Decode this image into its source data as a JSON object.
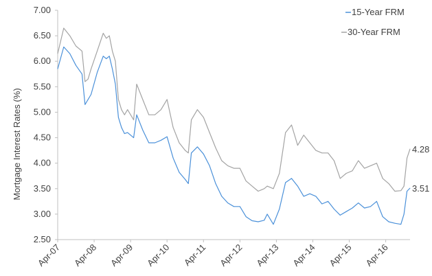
{
  "chart_data": {
    "type": "line",
    "ylabel": "Mortgage Interest Rates (%)",
    "xlabel": "",
    "ylim": [
      2.5,
      7.0
    ],
    "yticks": [
      "2.50",
      "3.00",
      "3.50",
      "4.00",
      "4.50",
      "5.00",
      "5.50",
      "6.00",
      "6.50",
      "7.00"
    ],
    "xlim": [
      "2007-04",
      "2016-12"
    ],
    "xticks": [
      "Apr-07",
      "Apr-08",
      "Apr-09",
      "Apr-10",
      "Apr-11",
      "Apr-12",
      "Apr-13",
      "Apr-14",
      "Apr-15",
      "Apr-16"
    ],
    "grid": false,
    "legend_position": "top-right",
    "series": [
      {
        "name": "15-Year FRM",
        "color": "#4a90d9",
        "end_label": "3.51",
        "points": [
          [
            "2007-04",
            5.85
          ],
          [
            "2007-06",
            6.28
          ],
          [
            "2007-08",
            6.15
          ],
          [
            "2007-10",
            5.92
          ],
          [
            "2007-12",
            5.75
          ],
          [
            "2008-01",
            5.15
          ],
          [
            "2008-02",
            5.25
          ],
          [
            "2008-03",
            5.35
          ],
          [
            "2008-05",
            5.78
          ],
          [
            "2008-07",
            6.1
          ],
          [
            "2008-08",
            6.05
          ],
          [
            "2008-09",
            6.1
          ],
          [
            "2008-10",
            5.85
          ],
          [
            "2008-11",
            5.55
          ],
          [
            "2008-12",
            4.9
          ],
          [
            "2009-01",
            4.7
          ],
          [
            "2009-02",
            4.58
          ],
          [
            "2009-03",
            4.6
          ],
          [
            "2009-05",
            4.5
          ],
          [
            "2009-06",
            4.95
          ],
          [
            "2009-08",
            4.65
          ],
          [
            "2009-10",
            4.4
          ],
          [
            "2009-12",
            4.4
          ],
          [
            "2010-02",
            4.45
          ],
          [
            "2010-04",
            4.52
          ],
          [
            "2010-06",
            4.1
          ],
          [
            "2010-08",
            3.82
          ],
          [
            "2010-10",
            3.68
          ],
          [
            "2010-11",
            3.6
          ],
          [
            "2010-12",
            4.2
          ],
          [
            "2011-02",
            4.32
          ],
          [
            "2011-04",
            4.18
          ],
          [
            "2011-06",
            3.95
          ],
          [
            "2011-08",
            3.6
          ],
          [
            "2011-10",
            3.35
          ],
          [
            "2011-12",
            3.22
          ],
          [
            "2012-02",
            3.15
          ],
          [
            "2012-04",
            3.15
          ],
          [
            "2012-06",
            2.95
          ],
          [
            "2012-08",
            2.87
          ],
          [
            "2012-10",
            2.85
          ],
          [
            "2012-12",
            2.88
          ],
          [
            "2013-01",
            3.0
          ],
          [
            "2013-03",
            2.8
          ],
          [
            "2013-05",
            3.1
          ],
          [
            "2013-07",
            3.62
          ],
          [
            "2013-09",
            3.7
          ],
          [
            "2013-11",
            3.55
          ],
          [
            "2014-01",
            3.35
          ],
          [
            "2014-03",
            3.4
          ],
          [
            "2014-05",
            3.35
          ],
          [
            "2014-07",
            3.2
          ],
          [
            "2014-09",
            3.25
          ],
          [
            "2014-11",
            3.1
          ],
          [
            "2015-01",
            2.98
          ],
          [
            "2015-03",
            3.05
          ],
          [
            "2015-05",
            3.12
          ],
          [
            "2015-07",
            3.22
          ],
          [
            "2015-09",
            3.12
          ],
          [
            "2015-11",
            3.15
          ],
          [
            "2016-01",
            3.25
          ],
          [
            "2016-03",
            2.95
          ],
          [
            "2016-05",
            2.85
          ],
          [
            "2016-07",
            2.82
          ],
          [
            "2016-09",
            2.8
          ],
          [
            "2016-10",
            3.0
          ],
          [
            "2016-11",
            3.45
          ],
          [
            "2016-12",
            3.51
          ]
        ]
      },
      {
        "name": "30-Year FRM",
        "color": "#a3a3a3",
        "end_label": "4.28",
        "points": [
          [
            "2007-04",
            6.15
          ],
          [
            "2007-06",
            6.65
          ],
          [
            "2007-08",
            6.5
          ],
          [
            "2007-10",
            6.3
          ],
          [
            "2007-12",
            6.2
          ],
          [
            "2008-01",
            5.6
          ],
          [
            "2008-02",
            5.65
          ],
          [
            "2008-03",
            5.85
          ],
          [
            "2008-05",
            6.2
          ],
          [
            "2008-07",
            6.55
          ],
          [
            "2008-08",
            6.45
          ],
          [
            "2008-09",
            6.5
          ],
          [
            "2008-10",
            6.2
          ],
          [
            "2008-11",
            6.0
          ],
          [
            "2008-12",
            5.25
          ],
          [
            "2009-01",
            5.05
          ],
          [
            "2009-02",
            4.95
          ],
          [
            "2009-03",
            5.05
          ],
          [
            "2009-05",
            4.85
          ],
          [
            "2009-06",
            5.55
          ],
          [
            "2009-08",
            5.25
          ],
          [
            "2009-10",
            4.95
          ],
          [
            "2009-12",
            4.95
          ],
          [
            "2010-02",
            5.05
          ],
          [
            "2010-04",
            5.25
          ],
          [
            "2010-06",
            4.7
          ],
          [
            "2010-08",
            4.4
          ],
          [
            "2010-10",
            4.25
          ],
          [
            "2010-11",
            4.2
          ],
          [
            "2010-12",
            4.85
          ],
          [
            "2011-02",
            5.05
          ],
          [
            "2011-04",
            4.9
          ],
          [
            "2011-06",
            4.6
          ],
          [
            "2011-08",
            4.3
          ],
          [
            "2011-10",
            4.05
          ],
          [
            "2011-12",
            3.95
          ],
          [
            "2012-02",
            3.9
          ],
          [
            "2012-04",
            3.9
          ],
          [
            "2012-06",
            3.65
          ],
          [
            "2012-08",
            3.55
          ],
          [
            "2012-10",
            3.45
          ],
          [
            "2012-12",
            3.5
          ],
          [
            "2013-01",
            3.55
          ],
          [
            "2013-03",
            3.5
          ],
          [
            "2013-05",
            3.8
          ],
          [
            "2013-07",
            4.6
          ],
          [
            "2013-09",
            4.75
          ],
          [
            "2013-11",
            4.35
          ],
          [
            "2014-01",
            4.55
          ],
          [
            "2014-03",
            4.4
          ],
          [
            "2014-05",
            4.25
          ],
          [
            "2014-07",
            4.2
          ],
          [
            "2014-09",
            4.2
          ],
          [
            "2014-11",
            4.05
          ],
          [
            "2015-01",
            3.7
          ],
          [
            "2015-03",
            3.8
          ],
          [
            "2015-05",
            3.85
          ],
          [
            "2015-07",
            4.05
          ],
          [
            "2015-09",
            3.9
          ],
          [
            "2015-11",
            3.95
          ],
          [
            "2016-01",
            4.0
          ],
          [
            "2016-03",
            3.7
          ],
          [
            "2016-05",
            3.6
          ],
          [
            "2016-07",
            3.45
          ],
          [
            "2016-09",
            3.46
          ],
          [
            "2016-10",
            3.55
          ],
          [
            "2016-11",
            4.1
          ],
          [
            "2016-12",
            4.28
          ]
        ]
      }
    ]
  }
}
